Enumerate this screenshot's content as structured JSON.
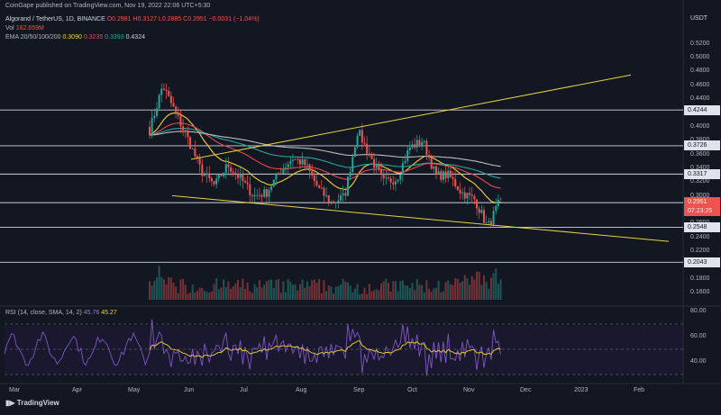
{
  "header": {
    "publisher": "CoinGape published on TradingView.com, Nov 19, 2022 22:06 UTC+5:30",
    "symbol": "Algorand / TetherUS, 1D, BINANCE",
    "ohlc": "O0.2981 H0.3127 L0.2885 C0.2951 −0.0031 (−1.04%)",
    "volume_label": "Vol",
    "volume_value": "162.659M",
    "ema_label": "EMA 20/50/100/200",
    "ema_values": [
      "0.3090",
      "0.3235",
      "0.3393",
      "0.4324"
    ],
    "rsi_label": "RSI (14, close, SMA, 14, 2)",
    "rsi_values": [
      "45.76",
      "45.27"
    ]
  },
  "price_axis": {
    "currency": "USDT",
    "ticks": [
      "0.5200",
      "0.5000",
      "0.4800",
      "0.4600",
      "0.4400",
      "0.4000",
      "0.3800",
      "0.3600",
      "0.3400",
      "0.3200",
      "0.3000",
      "0.2600",
      "0.2400",
      "0.2200",
      "0.1800",
      "0.1600"
    ]
  },
  "levels": [
    "0.4244",
    "0.3726",
    "0.3317",
    "0.2904",
    "0.2548",
    "0.2043"
  ],
  "current_price": {
    "value": "0.2951",
    "countdown": "07:23:25"
  },
  "rsi_axis": {
    "ticks": [
      "80.00",
      "60.00",
      "40.00"
    ]
  },
  "time_axis": {
    "labels": [
      "Mar",
      "Apr",
      "May",
      "Jun",
      "Jul",
      "Aug",
      "Sep",
      "Oct",
      "Nov",
      "Dec",
      "2023",
      "Feb"
    ]
  },
  "branding": "TradingView",
  "colors": {
    "background": "#131722",
    "up": "#26a69a",
    "down": "#ef5350",
    "ema20": "#f2d434",
    "ema50": "#e84a4a",
    "ema100": "#26a6a0",
    "ema200": "#bdbdbd",
    "trendline": "#e5d14a",
    "rsi": "#7e57c2",
    "rsi_ma": "#f2d434"
  },
  "chart_data": {
    "type": "candlestick",
    "title": "Algorand / TetherUS, 1D, BINANCE",
    "ylim": [
      0.15,
      0.53
    ],
    "months": [
      "Mar",
      "Apr",
      "May",
      "Jun",
      "Jul",
      "Aug",
      "Sep",
      "Oct",
      "Nov",
      "Dec",
      "2023",
      "Feb"
    ],
    "close_path": [
      0.395,
      0.46,
      0.42,
      0.38,
      0.335,
      0.315,
      0.345,
      0.325,
      0.3,
      0.305,
      0.335,
      0.355,
      0.345,
      0.31,
      0.29,
      0.3,
      0.395,
      0.355,
      0.32,
      0.325,
      0.37,
      0.38,
      0.33,
      0.33,
      0.305,
      0.295,
      0.255,
      0.2951
    ],
    "horizontal_levels": [
      0.4244,
      0.3726,
      0.3317,
      0.2904,
      0.2548,
      0.2043
    ],
    "ema": {
      "ema20": 0.309,
      "ema50": 0.3235,
      "ema100": 0.3393,
      "ema200": 0.4324
    },
    "rsi": {
      "value": 45.76,
      "ma": 45.27,
      "ticks": [
        80,
        60,
        40
      ]
    }
  }
}
